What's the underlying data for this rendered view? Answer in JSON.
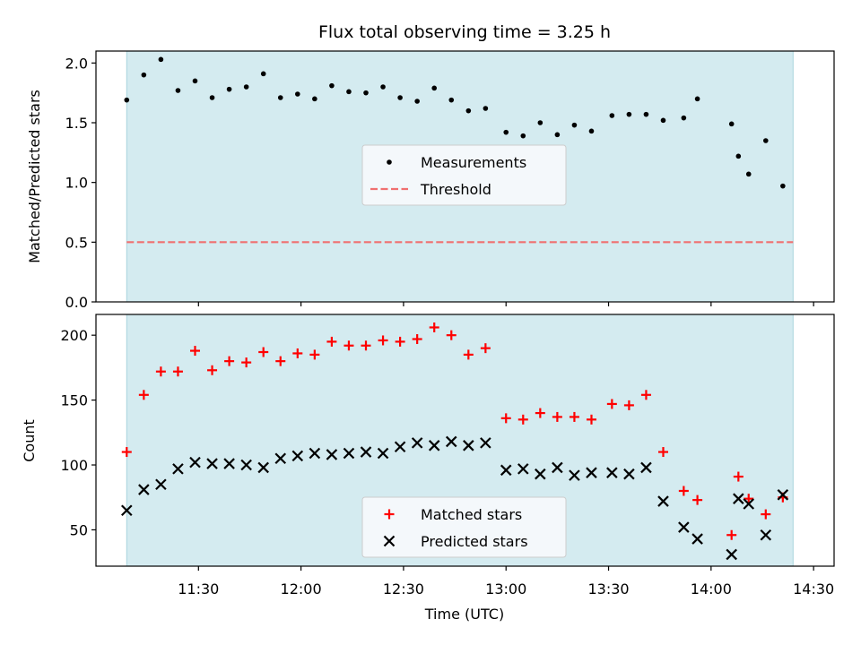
{
  "chart_data": {
    "type": "scatter",
    "title": "Flux total observing time = 3.25 h",
    "xlabel": "Time (UTC)",
    "x_ticks": [
      "11:30",
      "12:00",
      "12:30",
      "13:00",
      "13:30",
      "14:00",
      "14:30"
    ],
    "x_tick_minutes": [
      690,
      720,
      750,
      780,
      810,
      840,
      870
    ],
    "xlim": [
      660,
      876
    ],
    "observing_window": [
      669,
      864
    ],
    "shade_color": "#d4ebf0",
    "top": {
      "ylabel": "Matched/Predicted stars",
      "ylim": [
        0,
        2.1
      ],
      "yticks": [
        0.0,
        0.5,
        1.0,
        1.5,
        2.0
      ],
      "ytick_labels": [
        "0.0",
        "0.5",
        "1.0",
        "1.5",
        "2.0"
      ],
      "threshold": 0.5,
      "threshold_color": "#f07070",
      "legend": {
        "position": "center",
        "entries": [
          "Measurements",
          "Threshold"
        ]
      },
      "series": [
        {
          "name": "Measurements",
          "marker": "dot",
          "color": "#000000",
          "points": [
            [
              669,
              1.69
            ],
            [
              674,
              1.9
            ],
            [
              679,
              2.03
            ],
            [
              684,
              1.77
            ],
            [
              689,
              1.85
            ],
            [
              694,
              1.71
            ],
            [
              699,
              1.78
            ],
            [
              704,
              1.8
            ],
            [
              709,
              1.91
            ],
            [
              714,
              1.71
            ],
            [
              719,
              1.74
            ],
            [
              724,
              1.7
            ],
            [
              729,
              1.81
            ],
            [
              734,
              1.76
            ],
            [
              739,
              1.75
            ],
            [
              744,
              1.8
            ],
            [
              749,
              1.71
            ],
            [
              754,
              1.68
            ],
            [
              759,
              1.79
            ],
            [
              764,
              1.69
            ],
            [
              769,
              1.6
            ],
            [
              774,
              1.62
            ],
            [
              780,
              1.42
            ],
            [
              785,
              1.39
            ],
            [
              790,
              1.5
            ],
            [
              795,
              1.4
            ],
            [
              800,
              1.48
            ],
            [
              805,
              1.43
            ],
            [
              811,
              1.56
            ],
            [
              816,
              1.57
            ],
            [
              821,
              1.57
            ],
            [
              826,
              1.52
            ],
            [
              832,
              1.54
            ],
            [
              836,
              1.7
            ],
            [
              846,
              1.49
            ],
            [
              848,
              1.22
            ],
            [
              851,
              1.07
            ],
            [
              856,
              1.35
            ],
            [
              861,
              0.97
            ]
          ]
        }
      ]
    },
    "bottom": {
      "ylabel": "Count",
      "ylim": [
        22,
        216
      ],
      "yticks": [
        50,
        100,
        150,
        200
      ],
      "ytick_labels": [
        "50",
        "100",
        "150",
        "200"
      ],
      "legend": {
        "position": "bottom-center",
        "entries": [
          "Matched stars",
          "Predicted stars"
        ]
      },
      "series": [
        {
          "name": "Matched stars",
          "marker": "plus",
          "color": "#ff0000",
          "points": [
            [
              669,
              110
            ],
            [
              674,
              154
            ],
            [
              679,
              172
            ],
            [
              684,
              172
            ],
            [
              689,
              188
            ],
            [
              694,
              173
            ],
            [
              699,
              180
            ],
            [
              704,
              179
            ],
            [
              709,
              187
            ],
            [
              714,
              180
            ],
            [
              719,
              186
            ],
            [
              724,
              185
            ],
            [
              729,
              195
            ],
            [
              734,
              192
            ],
            [
              739,
              192
            ],
            [
              744,
              196
            ],
            [
              749,
              195
            ],
            [
              754,
              197
            ],
            [
              759,
              206
            ],
            [
              764,
              200
            ],
            [
              769,
              185
            ],
            [
              774,
              190
            ],
            [
              780,
              136
            ],
            [
              785,
              135
            ],
            [
              790,
              140
            ],
            [
              795,
              137
            ],
            [
              800,
              137
            ],
            [
              805,
              135
            ],
            [
              811,
              147
            ],
            [
              816,
              146
            ],
            [
              821,
              154
            ],
            [
              826,
              110
            ],
            [
              832,
              80
            ],
            [
              836,
              73
            ],
            [
              846,
              46
            ],
            [
              848,
              91
            ],
            [
              851,
              74
            ],
            [
              856,
              62
            ],
            [
              861,
              75
            ]
          ]
        },
        {
          "name": "Predicted stars",
          "marker": "x",
          "color": "#000000",
          "points": [
            [
              669,
              65
            ],
            [
              674,
              81
            ],
            [
              679,
              85
            ],
            [
              684,
              97
            ],
            [
              689,
              102
            ],
            [
              694,
              101
            ],
            [
              699,
              101
            ],
            [
              704,
              100
            ],
            [
              709,
              98
            ],
            [
              714,
              105
            ],
            [
              719,
              107
            ],
            [
              724,
              109
            ],
            [
              729,
              108
            ],
            [
              734,
              109
            ],
            [
              739,
              110
            ],
            [
              744,
              109
            ],
            [
              749,
              114
            ],
            [
              754,
              117
            ],
            [
              759,
              115
            ],
            [
              764,
              118
            ],
            [
              769,
              115
            ],
            [
              774,
              117
            ],
            [
              780,
              96
            ],
            [
              785,
              97
            ],
            [
              790,
              93
            ],
            [
              795,
              98
            ],
            [
              800,
              92
            ],
            [
              805,
              94
            ],
            [
              811,
              94
            ],
            [
              816,
              93
            ],
            [
              821,
              98
            ],
            [
              826,
              72
            ],
            [
              832,
              52
            ],
            [
              836,
              43
            ],
            [
              846,
              31
            ],
            [
              848,
              74
            ],
            [
              851,
              70
            ],
            [
              856,
              46
            ],
            [
              861,
              77
            ]
          ]
        }
      ]
    }
  }
}
